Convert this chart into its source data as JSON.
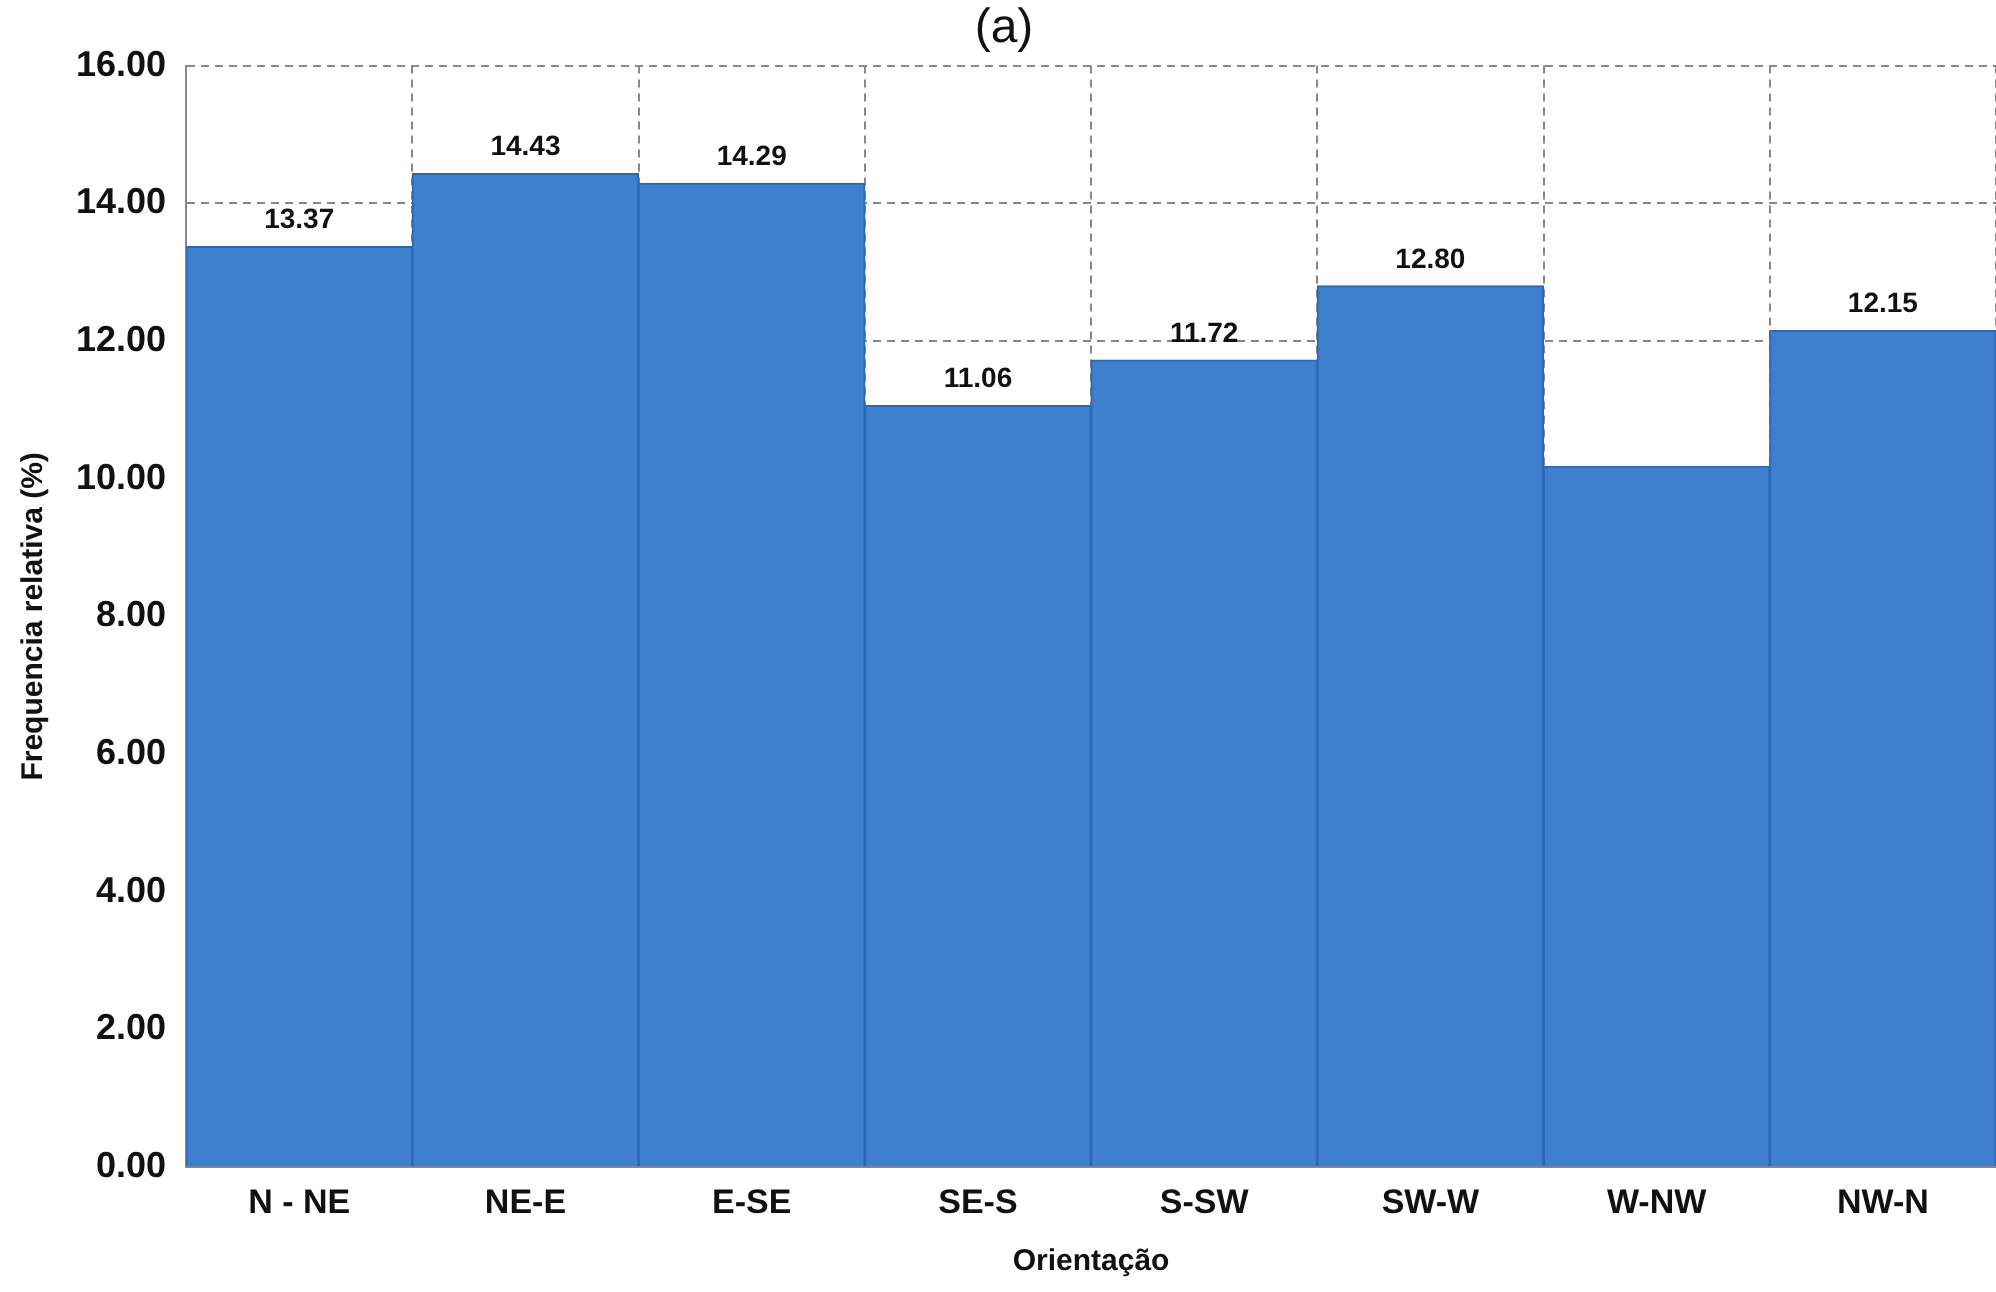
{
  "chart_data": {
    "type": "bar",
    "title": "(a)",
    "xlabel": "Orientação",
    "ylabel": "Frequencia relativa (%)",
    "categories": [
      "N - NE",
      "NE-E",
      "E-SE",
      "SE-S",
      "S-SW",
      "SW-W",
      "W-NW",
      "NW-N"
    ],
    "values": [
      13.37,
      14.43,
      14.29,
      11.06,
      11.72,
      12.8,
      10.18,
      12.15
    ],
    "value_labels": [
      "13.37",
      "14.43",
      "14.29",
      "11.06",
      "11.72",
      "12.80",
      null,
      "12.15"
    ],
    "color": "#3f7fd0",
    "ylim": [
      0,
      16
    ],
    "yticks": [
      {
        "value": 0,
        "label": "0.00"
      },
      {
        "value": 2,
        "label": "2.00"
      },
      {
        "value": 4,
        "label": "4.00"
      },
      {
        "value": 6,
        "label": "6.00"
      },
      {
        "value": 8,
        "label": "8.00"
      },
      {
        "value": 10,
        "label": "10.00"
      },
      {
        "value": 12,
        "label": "12.00"
      },
      {
        "value": 14,
        "label": "14.00"
      },
      {
        "value": 16,
        "label": "16.00"
      }
    ],
    "grid": true
  }
}
